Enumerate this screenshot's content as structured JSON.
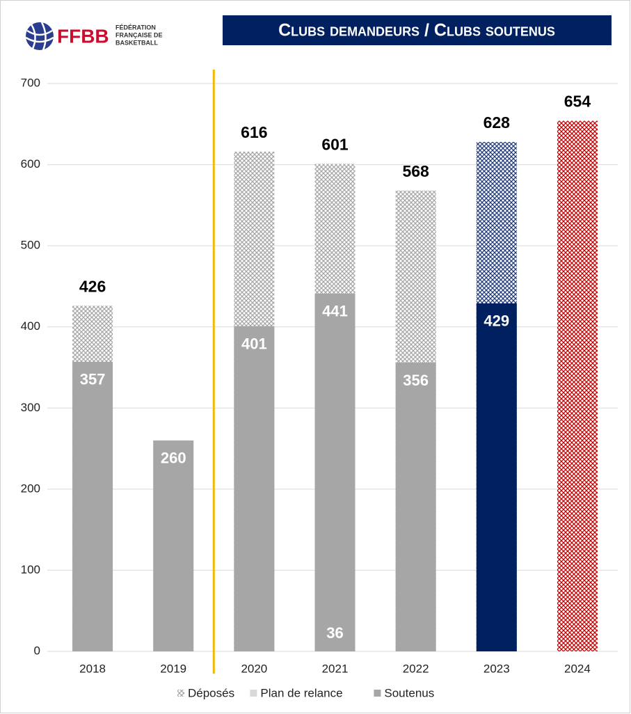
{
  "chart_data": {
    "type": "bar",
    "title": "Clubs demandeurs / Clubs soutenus",
    "logo": {
      "name": "FFBB",
      "lines": [
        "FÉDÉRATION",
        "FRANÇAISE DE",
        "BASKETBALL"
      ]
    },
    "categories": [
      "2018",
      "2019",
      "2020",
      "2021",
      "2022",
      "2023",
      "2024"
    ],
    "series": [
      {
        "name": "Déposés",
        "color": "#a6a6a6",
        "pattern": true,
        "colors": [
          "#a6a6a6",
          "#a6a6a6",
          "#a6a6a6",
          "#a6a6a6",
          "#a6a6a6",
          "#1f3a7a",
          "#c00000"
        ],
        "values": [
          426,
          null,
          616,
          601,
          568,
          628,
          654
        ]
      },
      {
        "name": "Plan de relance",
        "color": "#d9d9d9",
        "pattern": false,
        "colors": [
          "#a6a6a6",
          "#a6a6a6",
          "#a6a6a6",
          "#a6a6a6",
          "#a6a6a6",
          "#002060",
          "#a6a6a6"
        ],
        "values": [
          null,
          null,
          null,
          36,
          null,
          null,
          null
        ]
      },
      {
        "name": "Soutenus",
        "color": "#a6a6a6",
        "pattern": false,
        "colors": [
          "#a6a6a6",
          "#a6a6a6",
          "#a6a6a6",
          "#a6a6a6",
          "#a6a6a6",
          "#002060",
          "#a6a6a6"
        ],
        "values": [
          357,
          260,
          401,
          441,
          356,
          429,
          null
        ]
      }
    ],
    "ylim": [
      0,
      700
    ],
    "yticks": [
      0,
      100,
      200,
      300,
      400,
      500,
      600,
      700
    ],
    "grid": true,
    "legend": "bottom"
  }
}
